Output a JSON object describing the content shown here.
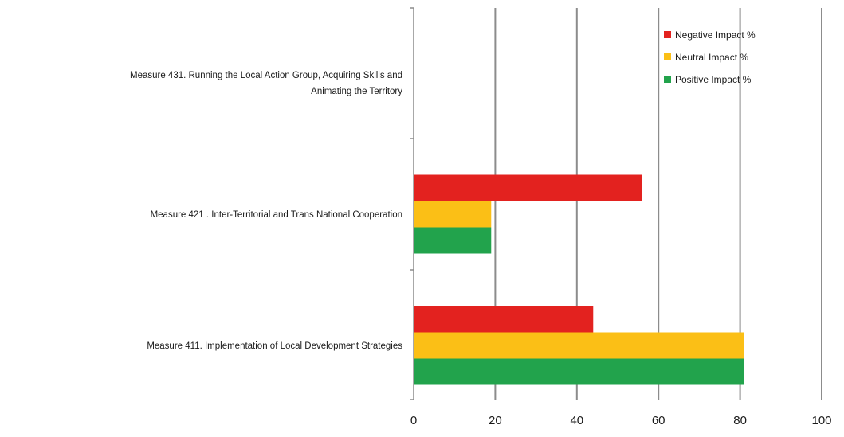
{
  "chart_data": {
    "type": "bar",
    "orientation": "horizontal",
    "categories": [
      [
        "Measure 431. Running the Local Action Group, Acquiring Skills and",
        "Animating the Territory"
      ],
      [
        "Measure 421 . Inter-Territorial and Trans National Cooperation"
      ],
      [
        "Measure 411. Implementation of Local Development Strategies"
      ]
    ],
    "series": [
      {
        "name": "Negative Impact %",
        "color": "#e3221f",
        "values": [
          0,
          56,
          44
        ]
      },
      {
        "name": "Neutral Impact %",
        "color": "#fbbf16",
        "values": [
          0,
          19,
          81
        ]
      },
      {
        "name": "Positive Impact %",
        "color": "#22a34c",
        "values": [
          0,
          19,
          81
        ]
      }
    ],
    "xlim": [
      0,
      100
    ],
    "xticks": [
      0,
      20,
      40,
      60,
      80,
      100
    ],
    "grid": true,
    "legend_position": "top-right",
    "title": "",
    "xlabel": "",
    "ylabel": ""
  }
}
